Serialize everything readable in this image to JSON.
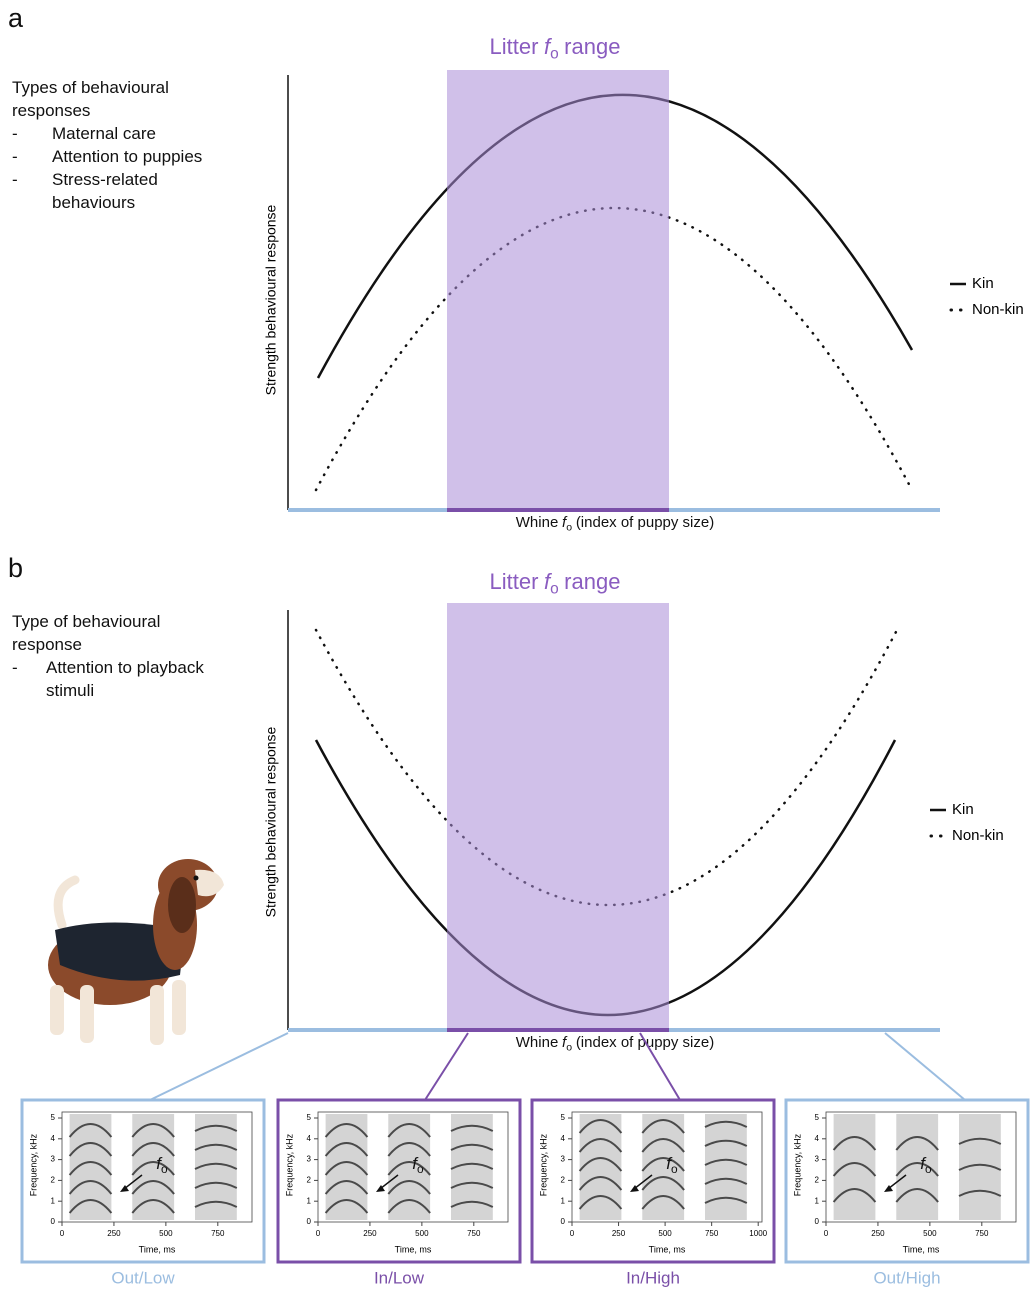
{
  "panels": [
    {
      "letter": "a",
      "range_title": {
        "text": "Litter",
        "symbol": "f",
        "subscript": "o",
        "suffix": "range"
      },
      "response_types": {
        "heading": "Types of behavioural responses",
        "bullet": "-",
        "items": [
          "Maternal care",
          "Attention to puppies",
          "Stress-related behaviours"
        ]
      },
      "y_label": "Strength behavioural response",
      "x_label": {
        "text": "Whine",
        "symbol": "f",
        "subscript": "o",
        "suffix": "(index of puppy size)"
      },
      "legend": [
        "Kin",
        "Non-kin"
      ]
    },
    {
      "letter": "b",
      "range_title": {
        "text": "Litter",
        "symbol": "f",
        "subscript": "o",
        "suffix": "range"
      },
      "response_types": {
        "heading": "Type of behavioural response",
        "bullet": "-",
        "items": [
          "Attention to playback stimuli"
        ]
      },
      "y_label": "Strength behavioural response",
      "x_label": {
        "text": "Whine",
        "symbol": "f",
        "subscript": "o",
        "suffix": "(index of puppy size)"
      },
      "legend": [
        "Kin",
        "Non-kin"
      ]
    }
  ],
  "spectrograms": [
    {
      "label": "Out/Low",
      "y_label": "Frequency, kHz",
      "x_label": "Time, ms",
      "yticks": [
        0,
        1,
        2,
        3,
        4,
        5
      ],
      "xticks": [
        0,
        250,
        500,
        750
      ],
      "annotation": {
        "symbol": "f",
        "subscript": "o"
      }
    },
    {
      "label": "In/Low",
      "y_label": "Frequency, kHz",
      "x_label": "Time, ms",
      "yticks": [
        0,
        1,
        2,
        3,
        4,
        5
      ],
      "xticks": [
        0,
        250,
        500,
        750
      ],
      "annotation": {
        "symbol": "f",
        "subscript": "o"
      }
    },
    {
      "label": "In/High",
      "y_label": "Frequency, kHz",
      "x_label": "Time, ms",
      "yticks": [
        0,
        1,
        2,
        3,
        4,
        5
      ],
      "xticks": [
        0,
        250,
        500,
        750,
        1000
      ],
      "annotation": {
        "symbol": "f",
        "subscript": "o"
      }
    },
    {
      "label": "Out/High",
      "y_label": "Frequency, kHz",
      "x_label": "Time, ms",
      "yticks": [
        0,
        1,
        2,
        3,
        4,
        5
      ],
      "xticks": [
        0,
        250,
        500,
        750
      ],
      "annotation": {
        "symbol": "f",
        "subscript": "o"
      }
    }
  ]
}
